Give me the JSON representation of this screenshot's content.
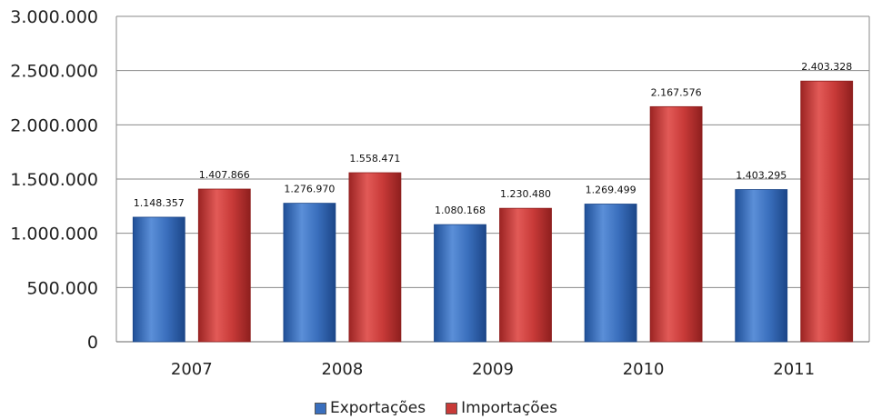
{
  "chart_data": {
    "type": "bar",
    "categories": [
      "2007",
      "2008",
      "2009",
      "2010",
      "2011"
    ],
    "series": [
      {
        "name": "Exportações",
        "values": [
          1148357,
          1276970,
          1080168,
          1269499,
          1403295
        ],
        "labels": [
          "1.148.357",
          "1.276.970",
          "1.080.168",
          "1.269.499",
          "1.403.295"
        ]
      },
      {
        "name": "Importações",
        "values": [
          1407866,
          1558471,
          1230480,
          2167576,
          2403328
        ],
        "labels": [
          "1.407.866",
          "1.558.471",
          "1.230.480",
          "2.167.576",
          "2.403.328"
        ]
      }
    ],
    "ylim": [
      0,
      3000000
    ],
    "yticks": [
      0,
      500000,
      1000000,
      1500000,
      2000000,
      2500000,
      3000000
    ],
    "ytick_labels": [
      "0",
      "500.000",
      "1.000.000",
      "1.500.000",
      "2.000.000",
      "2.500.000",
      "3.000.000"
    ],
    "grid": true,
    "legend_position": "bottom",
    "colors": {
      "Exportações": "#3a6fbd",
      "Importações": "#c83a38"
    }
  }
}
